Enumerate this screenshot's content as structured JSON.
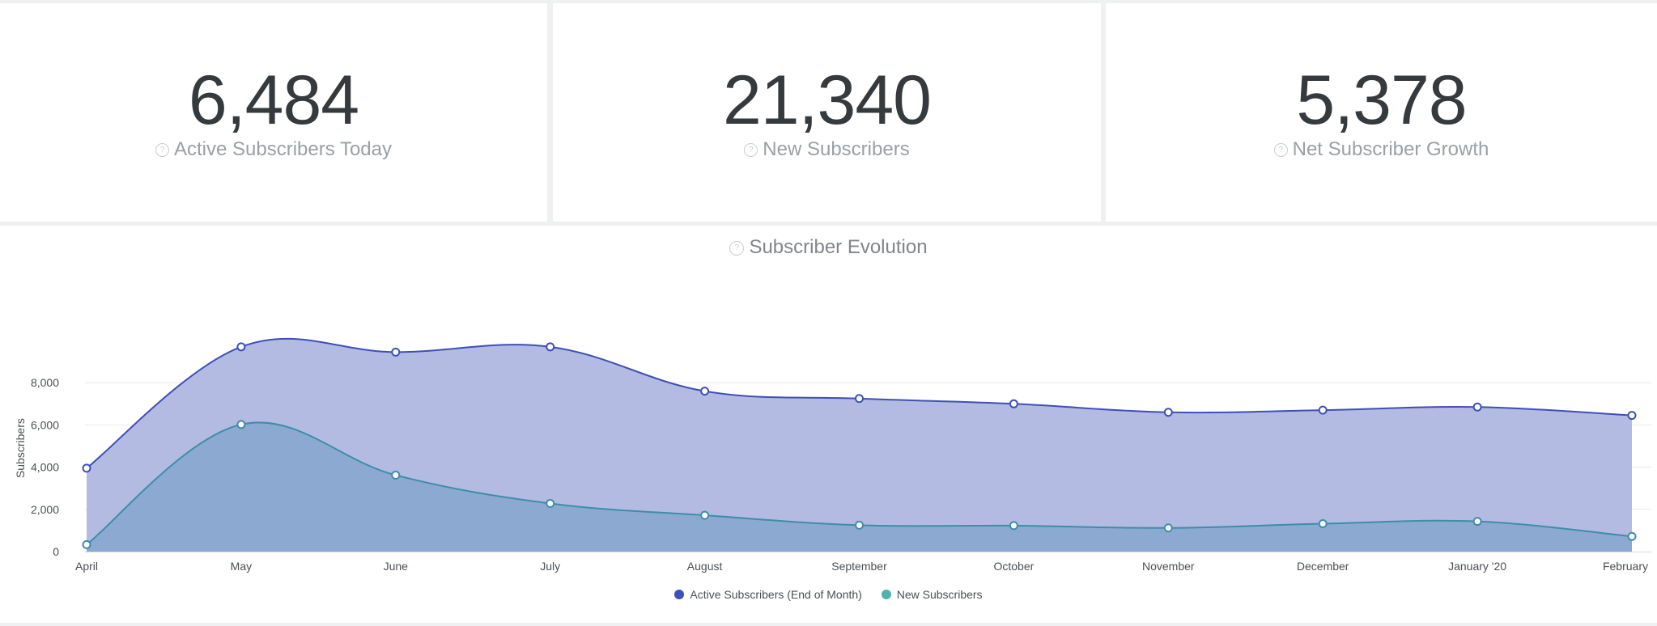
{
  "kpis": [
    {
      "value": "6,484",
      "label": "Active Subscribers Today"
    },
    {
      "value": "21,340",
      "label": "New Subscribers"
    },
    {
      "value": "5,378",
      "label": "Net Subscriber Growth"
    }
  ],
  "help_glyph": "?",
  "colors": {
    "active_fill": "#b3bbe2",
    "active_line": "#3f4fb8",
    "new_fill": "#87a9cf",
    "new_line": "#3f8da8",
    "grid": "#e6e8ea",
    "axis_text": "#4a4f54"
  },
  "chart_data": {
    "type": "area",
    "title": "Subscriber Evolution",
    "ylabel": "Subscribers",
    "xlabel": "",
    "categories": [
      "April",
      "May",
      "June",
      "July",
      "August",
      "September",
      "October",
      "November",
      "December",
      "January '20",
      "February"
    ],
    "ylim": [
      0,
      10000
    ],
    "yticks": [
      0,
      2000,
      4000,
      6000,
      8000
    ],
    "ytick_labels": [
      "0",
      "2,000",
      "4,000",
      "6,000",
      "8,000"
    ],
    "series": [
      {
        "name": "Active Subscribers (End of Month)",
        "color": "#3f4fb8",
        "values": [
          3950,
          9700,
          9450,
          9700,
          7600,
          7250,
          7000,
          6600,
          6700,
          6850,
          6450
        ]
      },
      {
        "name": "New Subscribers",
        "color": "#4fb3aa",
        "values": [
          330,
          6020,
          3620,
          2280,
          1720,
          1250,
          1230,
          1120,
          1320,
          1430,
          720
        ]
      }
    ],
    "legend_position": "bottom-center"
  }
}
